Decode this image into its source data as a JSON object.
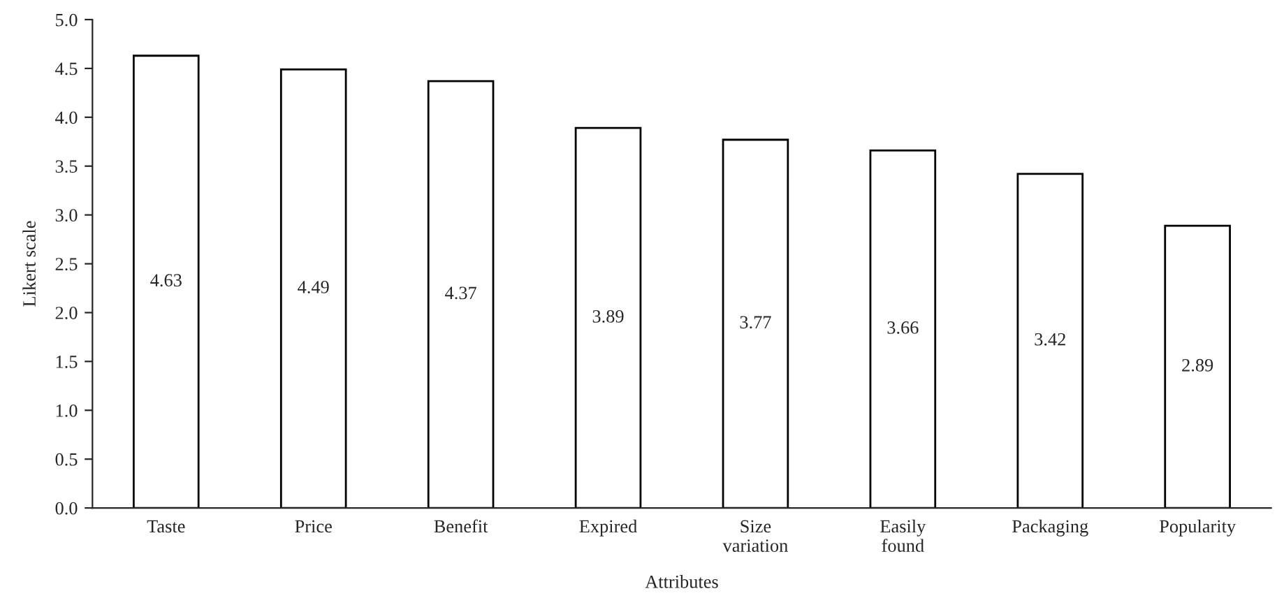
{
  "chart_data": {
    "type": "bar",
    "xlabel": "Attributes",
    "ylabel": "Likert scale",
    "categories": [
      "Taste",
      "Price",
      "Benefit",
      "Expired",
      "Size\nvariation",
      "Easily\nfound",
      "Packaging",
      "Popularity"
    ],
    "values": [
      4.63,
      4.49,
      4.37,
      3.89,
      3.77,
      3.66,
      3.42,
      2.89
    ],
    "color": "#ffffff",
    "data_labels": true,
    "grid": false,
    "ylim": [
      0,
      5
    ],
    "yticks": [
      {
        "value": 0,
        "label": "0.0"
      },
      {
        "value": 0.5,
        "label": "0.5"
      },
      {
        "value": 1,
        "label": "1.0"
      },
      {
        "value": 1.5,
        "label": "1.5"
      },
      {
        "value": 2,
        "label": "2.0"
      },
      {
        "value": 2.5,
        "label": "2.5"
      },
      {
        "value": 3,
        "label": "3.0"
      },
      {
        "value": 3.5,
        "label": "3.5"
      },
      {
        "value": 4,
        "label": "4.0"
      },
      {
        "value": 4.5,
        "label": "4.5"
      },
      {
        "value": 5,
        "label": "5.0"
      }
    ]
  }
}
